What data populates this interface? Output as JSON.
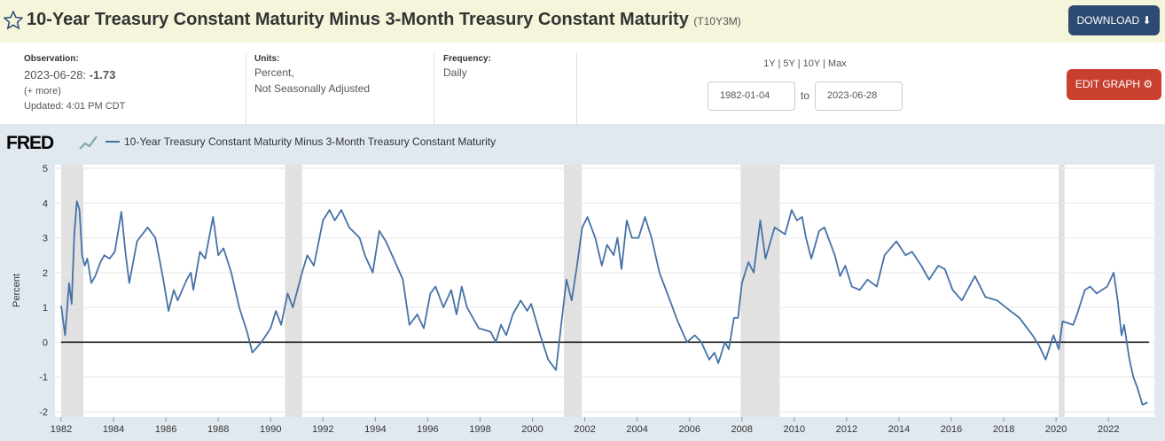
{
  "header": {
    "title": "10-Year Treasury Constant Maturity Minus 3-Month Treasury Constant Maturity",
    "series_id": "(T10Y3M)",
    "download": "DOWNLOAD"
  },
  "info": {
    "observation_label": "Observation:",
    "observation_date": "2023-06-28:",
    "observation_value": "-1.73",
    "more": "(+ more)",
    "updated": "Updated: 4:01 PM CDT",
    "units_label": "Units:",
    "units": [
      "Percent,",
      "Not Seasonally Adjusted"
    ],
    "frequency_label": "Frequency:",
    "frequency": "Daily",
    "ranges": [
      "1Y",
      "5Y",
      "10Y",
      "Max"
    ],
    "start_date": "1982-01-04",
    "to": "to",
    "end_date": "2023-06-28",
    "edit": "EDIT GRAPH"
  },
  "chart_data": {
    "type": "line",
    "logo": "FRED",
    "ylabel": "Percent",
    "series": [
      {
        "name": "10-Year Treasury Constant Maturity Minus 3-Month Treasury Constant Maturity",
        "color": "#4572a7",
        "values": [
          1.05,
          0.2,
          1.7,
          1.1,
          3.1,
          4.05,
          3.8,
          2.5,
          2.2,
          2.4,
          1.7,
          1.9,
          2.3,
          2.5,
          2.4,
          2.6,
          3.75,
          2.6,
          1.7,
          2.9,
          3.3,
          3.0,
          1.8,
          0.9,
          1.5,
          1.2,
          1.8,
          2.0,
          1.5,
          2.6,
          2.4,
          3.6,
          2.5,
          2.7,
          2.0,
          1.0,
          0.3,
          -0.3,
          0.0,
          0.4,
          0.9,
          0.5,
          1.4,
          1.0,
          2.0,
          2.5,
          2.2,
          3.5,
          3.8,
          3.5,
          3.8,
          3.3,
          3.0,
          2.5,
          2.0,
          3.2,
          2.9,
          2.4,
          1.8,
          0.5,
          0.8,
          0.4,
          1.4,
          1.6,
          1.0,
          1.5,
          0.8,
          1.6,
          1.0,
          0.4,
          0.3,
          0.0,
          0.5,
          0.2,
          0.8,
          1.2,
          0.9,
          1.1,
          0.2,
          -0.5,
          -0.8,
          0.2,
          1.8,
          1.2,
          2.2,
          3.3,
          3.6,
          3.0,
          2.2,
          2.8,
          2.5,
          3.0,
          2.1,
          3.5,
          3.0,
          3.0,
          3.6,
          3.0,
          2.0,
          1.5,
          1.1,
          0.6,
          0.0,
          0.2,
          0.0,
          -0.5,
          -0.3,
          -0.6,
          0.0,
          -0.2,
          0.7,
          0.7,
          1.7,
          2.3,
          2.0,
          3.5,
          2.4,
          3.3,
          3.1,
          3.8,
          3.5,
          3.6,
          3.0,
          2.4,
          3.2,
          3.3,
          2.5,
          1.9,
          2.2,
          1.6,
          1.5,
          1.8,
          1.6,
          2.5,
          2.9,
          2.5,
          2.6,
          2.2,
          1.8,
          2.2,
          2.1,
          1.5,
          1.2,
          1.9,
          1.3,
          1.2,
          0.9,
          0.7,
          0.2,
          -0.1,
          -0.5,
          0.2,
          -0.2,
          0.6,
          0.5,
          0.8,
          1.5,
          1.6,
          1.4,
          1.6,
          2.0,
          1.2,
          0.2,
          0.5,
          -0.5,
          -1.0,
          -1.3,
          -1.8,
          -1.73
        ]
      }
    ],
    "x": [
      1982.0,
      1982.15,
      1982.3,
      1982.4,
      1982.5,
      1982.6,
      1982.7,
      1982.8,
      1982.9,
      1983.0,
      1983.15,
      1983.3,
      1983.5,
      1983.65,
      1983.85,
      1984.05,
      1984.3,
      1984.45,
      1984.6,
      1984.9,
      1985.3,
      1985.6,
      1985.9,
      1986.1,
      1986.3,
      1986.45,
      1986.8,
      1986.95,
      1987.05,
      1987.3,
      1987.5,
      1987.8,
      1988.0,
      1988.2,
      1988.5,
      1988.8,
      1989.1,
      1989.3,
      1989.65,
      1990.0,
      1990.2,
      1990.4,
      1990.65,
      1990.85,
      1991.2,
      1991.4,
      1991.65,
      1992.0,
      1992.25,
      1992.45,
      1992.7,
      1993.0,
      1993.4,
      1993.6,
      1993.9,
      1994.15,
      1994.4,
      1994.7,
      1995.05,
      1995.3,
      1995.6,
      1995.85,
      1996.1,
      1996.3,
      1996.6,
      1996.9,
      1997.1,
      1997.3,
      1997.5,
      1997.95,
      1998.4,
      1998.6,
      1998.8,
      1999.0,
      1999.25,
      1999.55,
      1999.8,
      1999.95,
      2000.3,
      2000.6,
      2000.9,
      2001.05,
      2001.3,
      2001.5,
      2001.7,
      2001.9,
      2002.1,
      2002.4,
      2002.65,
      2002.85,
      2003.1,
      2003.25,
      2003.4,
      2003.6,
      2003.8,
      2004.05,
      2004.3,
      2004.55,
      2004.85,
      2005.1,
      2005.3,
      2005.55,
      2005.9,
      2006.2,
      2006.45,
      2006.75,
      2006.95,
      2007.1,
      2007.35,
      2007.5,
      2007.7,
      2007.85,
      2008.0,
      2008.25,
      2008.45,
      2008.7,
      2008.9,
      2009.25,
      2009.65,
      2009.9,
      2010.1,
      2010.3,
      2010.45,
      2010.65,
      2010.95,
      2011.15,
      2011.55,
      2011.75,
      2011.95,
      2012.2,
      2012.5,
      2012.8,
      2013.15,
      2013.45,
      2013.9,
      2014.25,
      2014.5,
      2014.85,
      2015.15,
      2015.5,
      2015.75,
      2016.05,
      2016.4,
      2016.9,
      2017.3,
      2017.75,
      2018.25,
      2018.6,
      2019.1,
      2019.35,
      2019.6,
      2019.9,
      2020.1,
      2020.25,
      2020.65,
      2020.8,
      2021.1,
      2021.3,
      2021.55,
      2021.95,
      2022.2,
      2022.35,
      2022.5,
      2022.6,
      2022.8,
      2022.95,
      2023.1,
      2023.3,
      2023.49
    ],
    "xlim": [
      1982,
      2023.55
    ],
    "xticks": [
      1982,
      1984,
      1986,
      1988,
      1990,
      1992,
      1994,
      1996,
      1998,
      2000,
      2002,
      2004,
      2006,
      2008,
      2010,
      2012,
      2014,
      2016,
      2018,
      2020,
      2022
    ],
    "ylim": [
      -2,
      5
    ],
    "yticks": [
      -2,
      -1,
      0,
      1,
      2,
      3,
      4,
      5
    ],
    "grid": true,
    "zero_line": true,
    "recessions": [
      [
        1982.0,
        1982.85
      ],
      [
        1990.55,
        1991.2
      ],
      [
        2001.2,
        2001.88
      ],
      [
        2007.95,
        2009.45
      ],
      [
        2020.1,
        2020.32
      ]
    ]
  }
}
